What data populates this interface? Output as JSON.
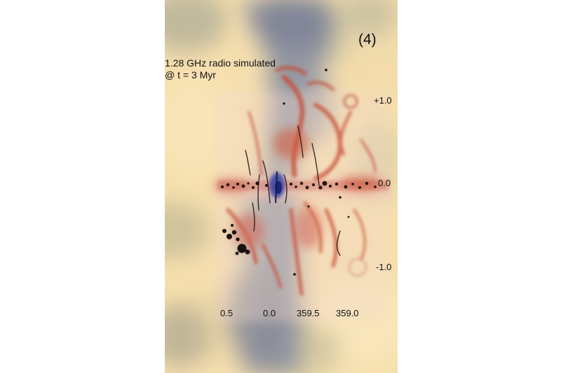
{
  "panel": {
    "label": "(4)"
  },
  "caption": {
    "line1": "1.28 GHz radio simulated",
    "line2": "@ t = 3 Myr"
  },
  "axes": {
    "latitude_labels": [
      "+1.0",
      "0.0",
      "-1.0"
    ],
    "longitude_labels": [
      "0.5",
      "0.0",
      "359.5",
      "359.0"
    ]
  },
  "colors": {
    "background": "#f6dfae",
    "gas_blue_grey": "#8a8fa0",
    "radio_red": "#c84a32",
    "radio_pink": "#f2c2b4",
    "core_blue": "#2335a8",
    "filament_black": "#1a1010"
  }
}
